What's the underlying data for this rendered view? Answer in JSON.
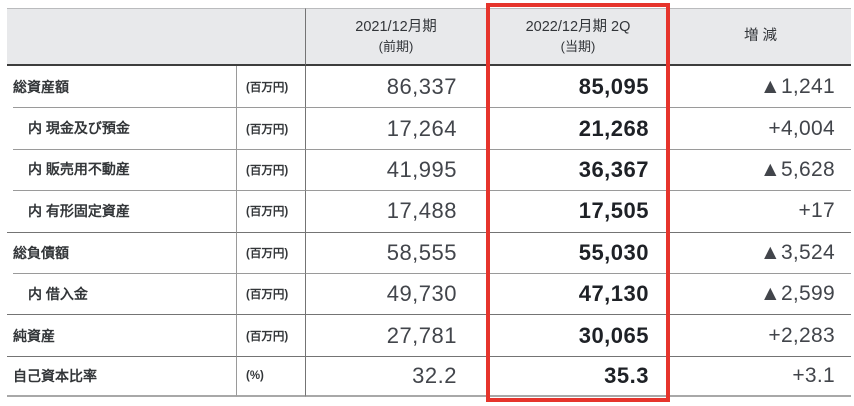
{
  "table": {
    "header": {
      "prev_period": {
        "line1": "2021/12月期",
        "line2": "(前期)"
      },
      "curr_period": {
        "line1": "2022/12月期 2Q",
        "line2": "(当期)"
      },
      "diff": "増 減"
    },
    "rows": [
      {
        "label": "総資産額",
        "unit": "(百万円)",
        "prev": "86,337",
        "curr": "85,095",
        "diff": "▲1,241"
      },
      {
        "label": "内 現金及び預金",
        "unit": "(百万円)",
        "prev": "17,264",
        "curr": "21,268",
        "diff": "+4,004"
      },
      {
        "label": "内 販売用不動産",
        "unit": "(百万円)",
        "prev": "41,995",
        "curr": "36,367",
        "diff": "▲5,628"
      },
      {
        "label": "内 有形固定資産",
        "unit": "(百万円)",
        "prev": "17,488",
        "curr": "17,505",
        "diff": "+17"
      },
      {
        "label": "総負債額",
        "unit": "(百万円)",
        "prev": "58,555",
        "curr": "55,030",
        "diff": "▲3,524"
      },
      {
        "label": "内 借入金",
        "unit": "(百万円)",
        "prev": "49,730",
        "curr": "47,130",
        "diff": "▲2,599"
      },
      {
        "label": "純資産",
        "unit": "(百万円)",
        "prev": "27,781",
        "curr": "30,065",
        "diff": "+2,283"
      },
      {
        "label": "自己資本比率",
        "unit": "(%)",
        "prev": "32.2",
        "curr": "35.3",
        "diff": "+3.1"
      }
    ],
    "colors": {
      "highlight_red": "#e6342c",
      "header_bg": "#e8e9eb"
    }
  }
}
